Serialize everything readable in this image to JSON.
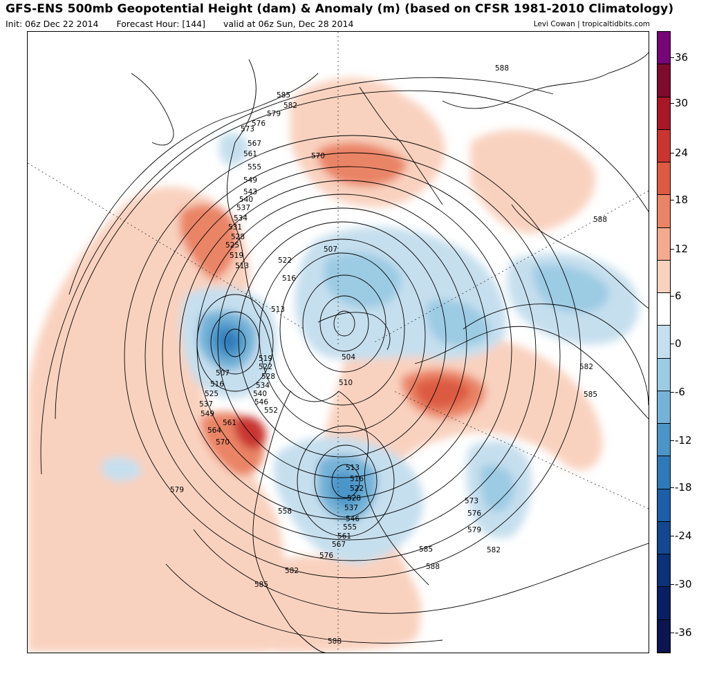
{
  "header": {
    "title": "GFS-ENS 500mb Geopotential Height (dam) & Anomaly (m) (based on CFSR 1981-2010 Climatology)",
    "init": "Init: 06z Dec 22 2014",
    "forecast_hour": "Forecast Hour: [144]",
    "valid": "valid at 06z Sun, Dec 28 2014",
    "credit": "Levi Cowan | tropicaltidbits.com"
  },
  "colorbar": {
    "labels": [
      "36",
      "30",
      "24",
      "18",
      "12",
      "6",
      "0",
      "-6",
      "-12",
      "-18",
      "-24",
      "-30",
      "-36"
    ],
    "colors": [
      "#760578",
      "#7d0b2d",
      "#a81727",
      "#c93530",
      "#dc5a43",
      "#ea8466",
      "#f3aa8f",
      "#f9d2bf",
      "#ffffff",
      "#c6dfee",
      "#9ccbe4",
      "#76b2d8",
      "#4c95c8",
      "#2f79b8",
      "#1d5ea6",
      "#14478f",
      "#0c3178",
      "#0a1f62",
      "#0c1550"
    ]
  },
  "contour_labels": [
    {
      "id": "588-n",
      "text": "588"
    },
    {
      "id": "585-nw",
      "text": "585"
    },
    {
      "id": "582-nw",
      "text": "582"
    },
    {
      "id": "579-nw",
      "text": "579"
    },
    {
      "id": "576-nw",
      "text": "576"
    },
    {
      "id": "573-nw",
      "text": "573"
    },
    {
      "id": "567",
      "text": "567"
    },
    {
      "id": "561",
      "text": "561"
    },
    {
      "id": "555",
      "text": "555"
    },
    {
      "id": "570-n",
      "text": "570"
    },
    {
      "id": "549",
      "text": "549"
    },
    {
      "id": "543",
      "text": "543"
    },
    {
      "id": "540",
      "text": "540"
    },
    {
      "id": "537",
      "text": "537"
    },
    {
      "id": "534",
      "text": "534"
    },
    {
      "id": "531",
      "text": "531"
    },
    {
      "id": "528",
      "text": "528"
    },
    {
      "id": "525",
      "text": "525"
    },
    {
      "id": "519",
      "text": "519"
    },
    {
      "id": "513",
      "text": "513"
    },
    {
      "id": "522",
      "text": "522"
    },
    {
      "id": "516",
      "text": "516"
    },
    {
      "id": "507-n",
      "text": "507"
    },
    {
      "id": "588-ne",
      "text": "588"
    },
    {
      "id": "513-c",
      "text": "513"
    },
    {
      "id": "504",
      "text": "504"
    },
    {
      "id": "510",
      "text": "510"
    },
    {
      "id": "507-w",
      "text": "507"
    },
    {
      "id": "516-w",
      "text": "516"
    },
    {
      "id": "525-w",
      "text": "525"
    },
    {
      "id": "537-w",
      "text": "537"
    },
    {
      "id": "549-w",
      "text": "549"
    },
    {
      "id": "519-c",
      "text": "519"
    },
    {
      "id": "522-c",
      "text": "522"
    },
    {
      "id": "528-c",
      "text": "528"
    },
    {
      "id": "534-c",
      "text": "534"
    },
    {
      "id": "540-c",
      "text": "540"
    },
    {
      "id": "546-c",
      "text": "546"
    },
    {
      "id": "552-c",
      "text": "552"
    },
    {
      "id": "561-w",
      "text": "561"
    },
    {
      "id": "564-w",
      "text": "564"
    },
    {
      "id": "570-w",
      "text": "570"
    },
    {
      "id": "582-e",
      "text": "582"
    },
    {
      "id": "585-e",
      "text": "585"
    },
    {
      "id": "579-w",
      "text": "579"
    },
    {
      "id": "558",
      "text": "558"
    },
    {
      "id": "513-s",
      "text": "513"
    },
    {
      "id": "516-s",
      "text": "516"
    },
    {
      "id": "522-s",
      "text": "522"
    },
    {
      "id": "528-s",
      "text": "528"
    },
    {
      "id": "537-s",
      "text": "537"
    },
    {
      "id": "546-s",
      "text": "546"
    },
    {
      "id": "555-s",
      "text": "555"
    },
    {
      "id": "561-s",
      "text": "561"
    },
    {
      "id": "567-s",
      "text": "567"
    },
    {
      "id": "576-s",
      "text": "576"
    },
    {
      "id": "573-s",
      "text": "573"
    },
    {
      "id": "576-se",
      "text": "576"
    },
    {
      "id": "579-se",
      "text": "579"
    },
    {
      "id": "582-se",
      "text": "582"
    },
    {
      "id": "585-s",
      "text": "585"
    },
    {
      "id": "588-s",
      "text": "588"
    },
    {
      "id": "582-s",
      "text": "582"
    },
    {
      "id": "585-sw",
      "text": "585"
    },
    {
      "id": "588-b",
      "text": "588"
    }
  ]
}
